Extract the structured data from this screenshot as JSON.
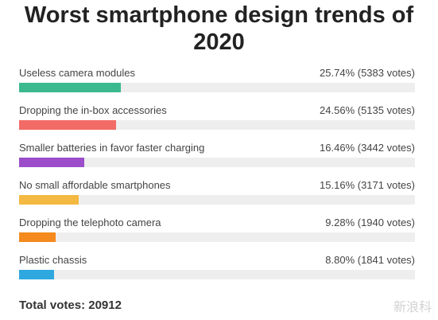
{
  "poll": {
    "title_line1": "Worst smartphone design trends of",
    "title_line2": "2020",
    "options": [
      {
        "label": "Useless camera modules",
        "result": "25.74% (5383 votes)",
        "percent": 25.74,
        "color": "#3cb98f"
      },
      {
        "label": "Dropping the in-box accessories",
        "result": "24.56% (5135 votes)",
        "percent": 24.56,
        "color": "#f26b66"
      },
      {
        "label": "Smaller batteries in favor faster charging",
        "result": "16.46% (3442 votes)",
        "percent": 16.46,
        "color": "#9b4dca"
      },
      {
        "label": "No small affordable smartphones",
        "result": "15.16% (3171 votes)",
        "percent": 15.16,
        "color": "#f4b942"
      },
      {
        "label": "Dropping the telephoto camera",
        "result": "9.28% (1940 votes)",
        "percent": 9.28,
        "color": "#f48a1e"
      },
      {
        "label": "Plastic chassis",
        "result": "8.80% (1841 votes)",
        "percent": 8.8,
        "color": "#2fa8e0"
      }
    ],
    "total_label": "Total votes:",
    "total_value": "20912"
  },
  "watermark": {
    "text": "新浪科"
  }
}
